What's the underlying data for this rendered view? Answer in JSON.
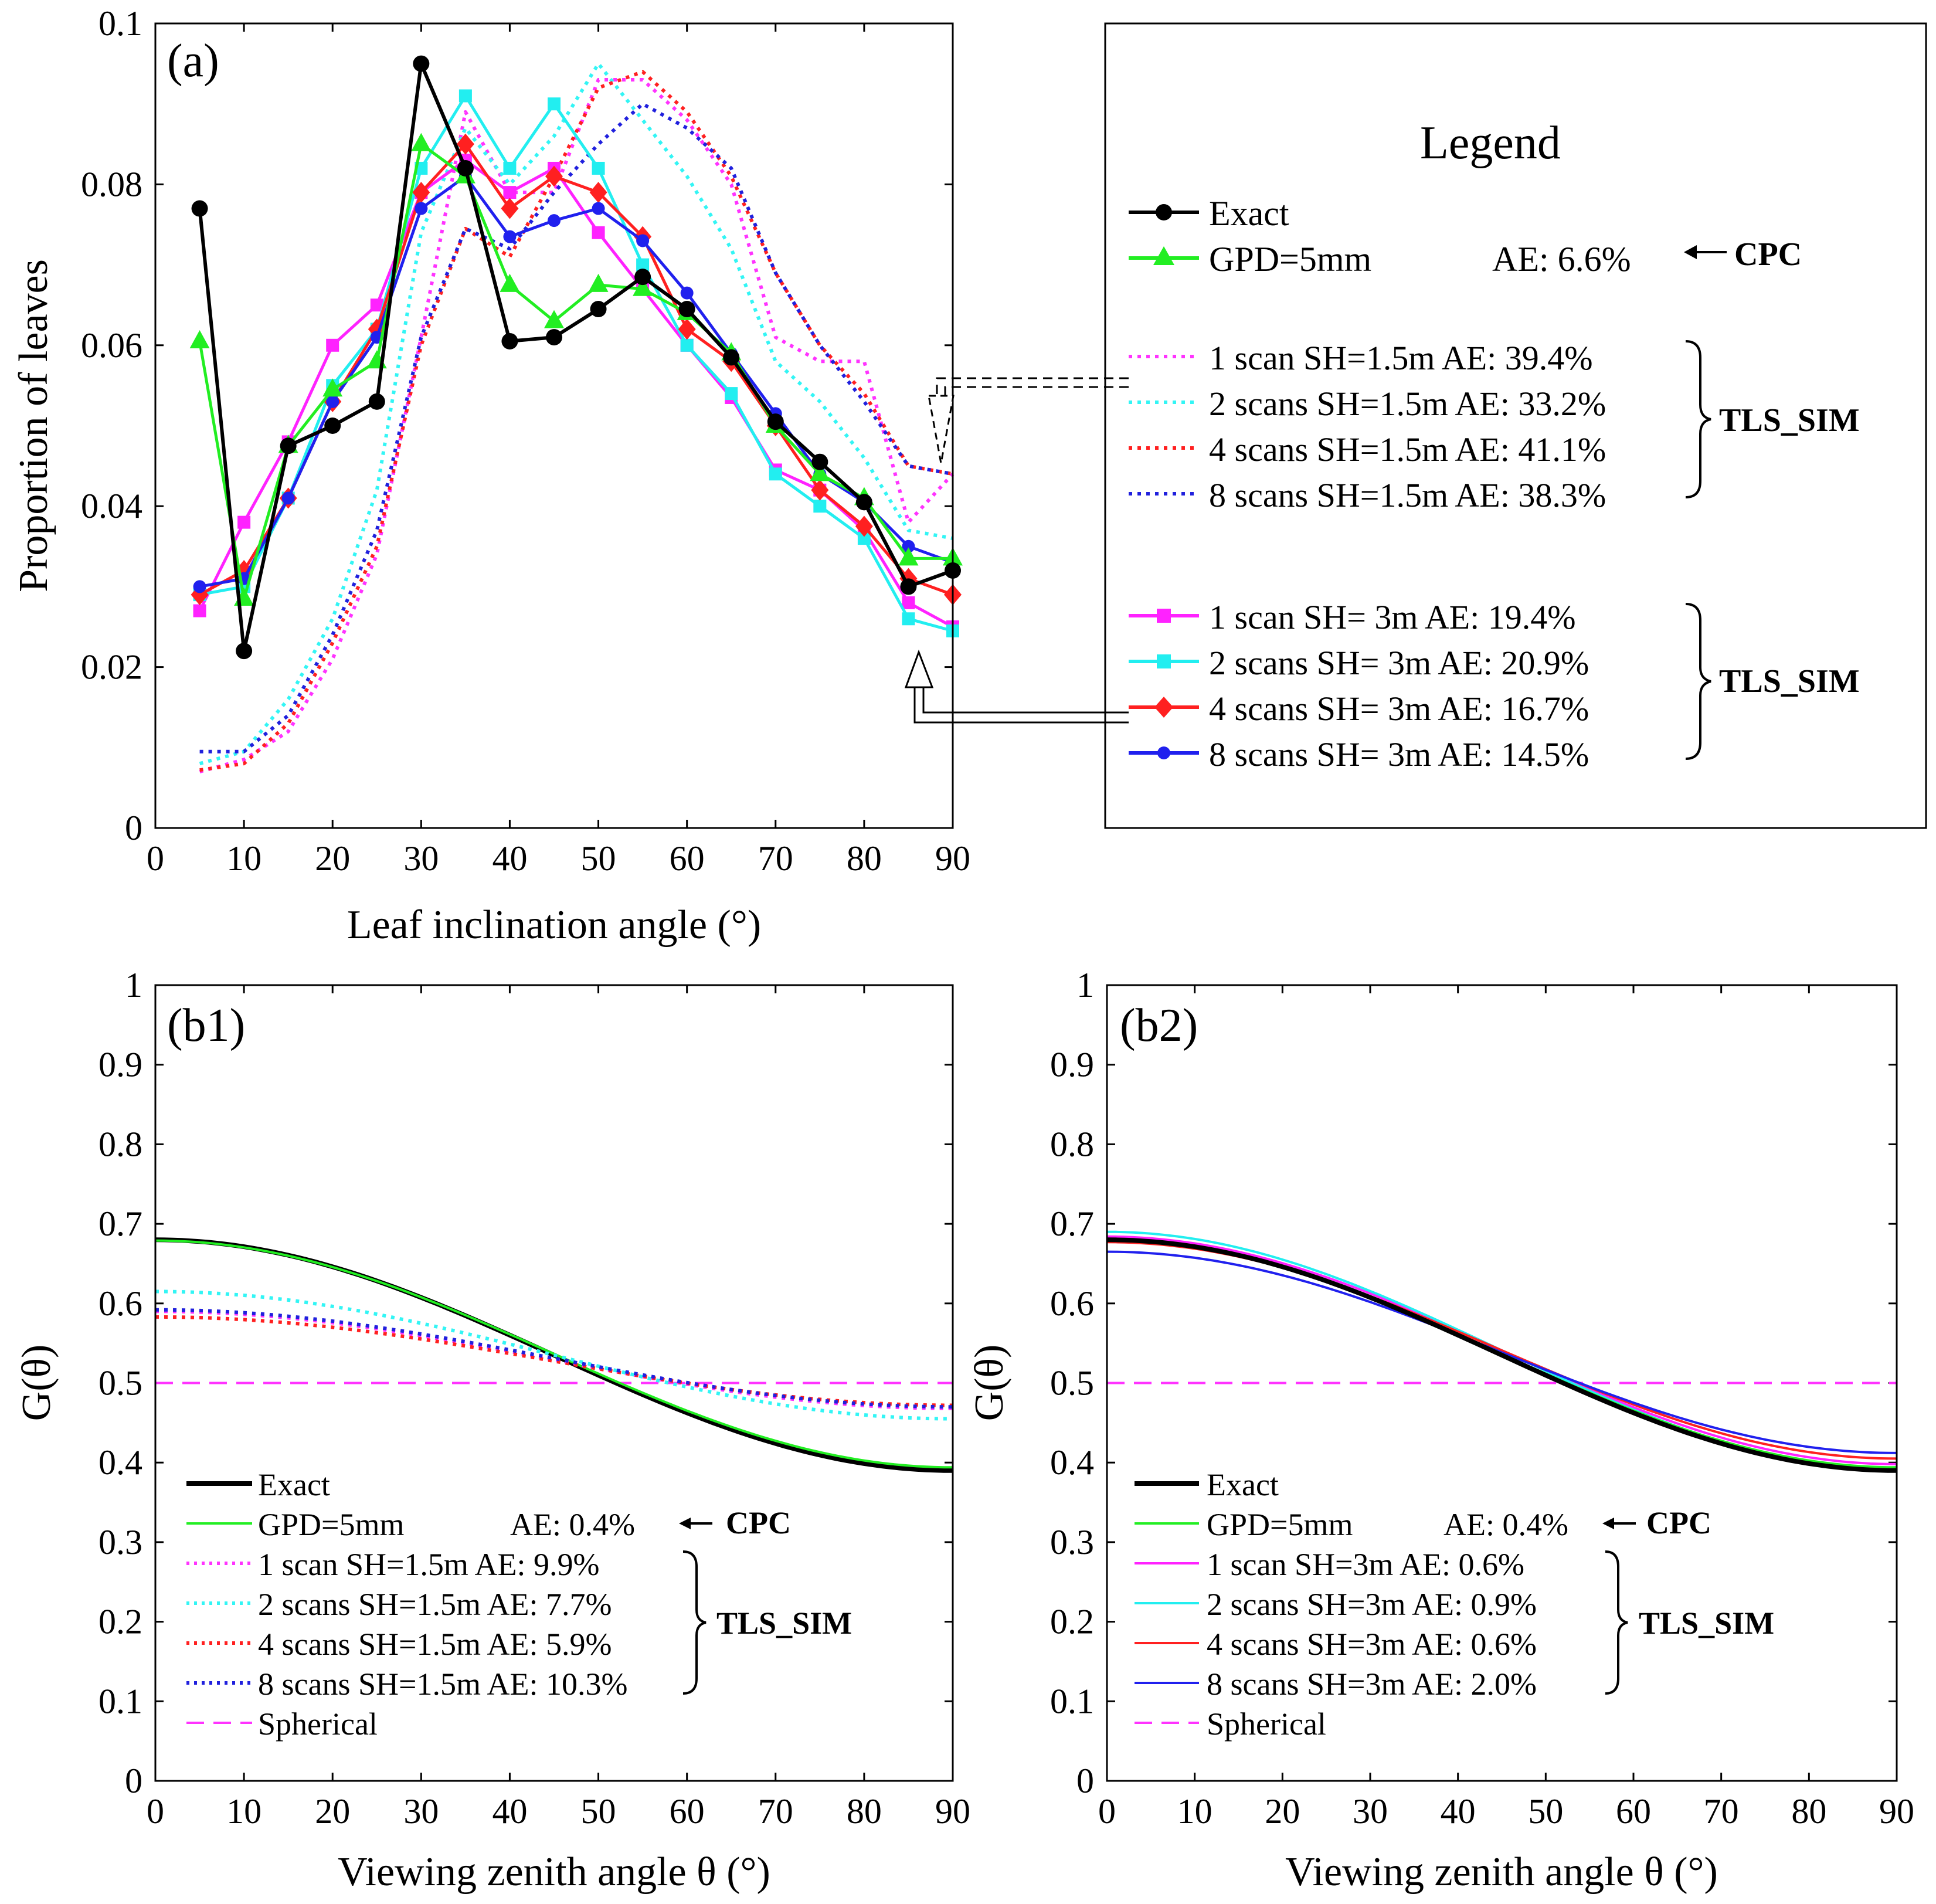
{
  "chart_data": [
    {
      "panel": "(a)",
      "type": "line",
      "xlabel": "Leaf inclination angle (°)",
      "ylabel": "Proportion of leaves",
      "xlim": [
        0,
        90
      ],
      "ylim": [
        0,
        0.1
      ],
      "xticks": [
        "0",
        "10",
        "20",
        "30",
        "40",
        "50",
        "60",
        "70",
        "80",
        "90"
      ],
      "yticks": [
        "0",
        "0.02",
        "0.04",
        "0.06",
        "0.08",
        "0.1"
      ],
      "x": [
        5,
        10,
        15,
        20,
        25,
        30,
        35,
        40,
        45,
        50,
        55,
        60,
        65,
        70,
        75,
        80,
        85,
        90
      ],
      "series": [
        {
          "name": "1 scan SH=1.5m",
          "color": "#ff33ff",
          "style": "dotted",
          "values": [
            0.007,
            0.0085,
            0.012,
            0.021,
            0.034,
            0.061,
            0.089,
            0.079,
            0.079,
            0.093,
            0.093,
            0.088,
            0.08,
            0.061,
            0.058,
            0.058,
            0.038,
            0.044
          ]
        },
        {
          "name": "2 scans SH=1.5m",
          "color": "#33f5f5",
          "style": "dotted",
          "values": [
            0.008,
            0.0095,
            0.016,
            0.026,
            0.042,
            0.074,
            0.087,
            0.08,
            0.086,
            0.095,
            0.088,
            0.081,
            0.072,
            0.058,
            0.053,
            0.046,
            0.037,
            0.036
          ]
        },
        {
          "name": "4 scans SH=1.5m",
          "color": "#ff2020",
          "style": "dotted",
          "values": [
            0.0072,
            0.008,
            0.013,
            0.023,
            0.035,
            0.06,
            0.0745,
            0.071,
            0.081,
            0.092,
            0.094,
            0.089,
            0.081,
            0.069,
            0.06,
            0.054,
            0.045,
            0.044
          ]
        },
        {
          "name": "8 scans SH=1.5m",
          "color": "#2020dd",
          "style": "dotted",
          "values": [
            0.0095,
            0.0095,
            0.014,
            0.024,
            0.037,
            0.061,
            0.0745,
            0.072,
            0.079,
            0.085,
            0.09,
            0.087,
            0.082,
            0.069,
            0.06,
            0.053,
            0.045,
            0.044
          ]
        },
        {
          "name": "1 scan SH= 3m",
          "color": "#ff22ff",
          "style": "solid",
          "marker": "square",
          "values": [
            0.027,
            0.038,
            0.048,
            0.06,
            0.065,
            0.079,
            0.083,
            0.079,
            0.082,
            0.074,
            0.067,
            0.06,
            0.0535,
            0.0445,
            0.042,
            0.037,
            0.028,
            0.025
          ]
        },
        {
          "name": "2 scans SH= 3m",
          "color": "#22eef0",
          "style": "solid",
          "marker": "square",
          "values": [
            0.029,
            0.03,
            0.041,
            0.055,
            0.062,
            0.082,
            0.091,
            0.082,
            0.09,
            0.082,
            0.07,
            0.06,
            0.054,
            0.044,
            0.04,
            0.036,
            0.026,
            0.0245
          ]
        },
        {
          "name": "4 scans SH= 3m",
          "color": "#ff2020",
          "style": "solid",
          "marker": "diamond",
          "values": [
            0.029,
            0.032,
            0.041,
            0.053,
            0.062,
            0.079,
            0.085,
            0.077,
            0.081,
            0.079,
            0.0735,
            0.062,
            0.058,
            0.05,
            0.042,
            0.0375,
            0.031,
            0.029
          ]
        },
        {
          "name": "8 scans SH= 3m",
          "color": "#2020ee",
          "style": "solid",
          "marker": "circle",
          "values": [
            0.03,
            0.031,
            0.041,
            0.053,
            0.061,
            0.077,
            0.081,
            0.0735,
            0.0755,
            0.077,
            0.073,
            0.0665,
            0.059,
            0.0515,
            0.044,
            0.0405,
            0.035,
            0.033
          ]
        },
        {
          "name": "GPD=5mm",
          "color": "#22ee22",
          "style": "solid",
          "marker": "triangle",
          "values": [
            0.0605,
            0.0285,
            0.0475,
            0.0545,
            0.058,
            0.085,
            0.081,
            0.0675,
            0.063,
            0.0675,
            0.067,
            0.064,
            0.059,
            0.05,
            0.044,
            0.041,
            0.0335,
            0.0335
          ]
        },
        {
          "name": "Exact",
          "color": "#000000",
          "style": "solid",
          "marker": "circle",
          "values": [
            0.077,
            0.022,
            0.0475,
            0.05,
            0.053,
            0.095,
            0.082,
            0.0605,
            0.061,
            0.0645,
            0.0685,
            0.0645,
            0.0585,
            0.0505,
            0.0455,
            0.0405,
            0.03,
            0.032
          ]
        }
      ]
    },
    {
      "panel": "(b1)",
      "type": "line",
      "xlabel": "Viewing zenith angle θ (°)",
      "ylabel": "G(θ)",
      "xlim": [
        0,
        90
      ],
      "ylim": [
        0,
        1
      ],
      "xticks": [
        "0",
        "10",
        "20",
        "30",
        "40",
        "50",
        "60",
        "70",
        "80",
        "90"
      ],
      "yticks": [
        "0",
        "0.1",
        "0.2",
        "0.3",
        "0.4",
        "0.5",
        "0.6",
        "0.7",
        "0.8",
        "0.9",
        "1"
      ],
      "spherical": 0.5,
      "series": [
        {
          "name": "Exact",
          "color": "#000000",
          "style": "solid",
          "start": 0.68,
          "end": 0.39
        },
        {
          "name": "GPD=5mm",
          "color": "#22ee22",
          "style": "solid",
          "start": 0.679,
          "end": 0.394
        },
        {
          "name": "1 scan SH=1.5m",
          "color": "#ff33ff",
          "style": "dotted",
          "start": 0.59,
          "end": 0.468
        },
        {
          "name": "2 scans SH=1.5m",
          "color": "#33f5f5",
          "style": "dotted",
          "start": 0.615,
          "end": 0.455
        },
        {
          "name": "4 scans SH=1.5m",
          "color": "#ff2020",
          "style": "dotted",
          "start": 0.583,
          "end": 0.472
        },
        {
          "name": "8 scans SH=1.5m",
          "color": "#2020dd",
          "style": "dotted",
          "start": 0.592,
          "end": 0.47
        }
      ]
    },
    {
      "panel": "(b2)",
      "type": "line",
      "xlabel": "Viewing zenith angle θ (°)",
      "ylabel": "G(θ)",
      "xlim": [
        0,
        90
      ],
      "ylim": [
        0,
        1
      ],
      "xticks": [
        "0",
        "10",
        "20",
        "30",
        "40",
        "50",
        "60",
        "70",
        "80",
        "90"
      ],
      "yticks": [
        "0",
        "0.1",
        "0.2",
        "0.3",
        "0.4",
        "0.5",
        "0.6",
        "0.7",
        "0.8",
        "0.9",
        "1"
      ],
      "spherical": 0.5,
      "series": [
        {
          "name": "1 scan SH=3m",
          "color": "#ff22ff",
          "style": "solid",
          "start": 0.684,
          "end": 0.398
        },
        {
          "name": "2 scans SH=3m",
          "color": "#22eef0",
          "style": "solid",
          "start": 0.69,
          "end": 0.392
        },
        {
          "name": "4 scans SH=3m",
          "color": "#ff2020",
          "style": "solid",
          "start": 0.677,
          "end": 0.405
        },
        {
          "name": "8 scans SH=3m",
          "color": "#2020ee",
          "style": "solid",
          "start": 0.665,
          "end": 0.412
        },
        {
          "name": "GPD=5mm",
          "color": "#22ee22",
          "style": "solid",
          "start": 0.679,
          "end": 0.394
        },
        {
          "name": "Exact",
          "color": "#000000",
          "style": "solid",
          "start": 0.68,
          "end": 0.39
        }
      ]
    }
  ],
  "legend_a": {
    "title": "Legend",
    "exact": "Exact",
    "gpd": "GPD=5mm",
    "gpd_ae": "AE: 6.6%",
    "cpc": "CPC",
    "tls": "TLS_SIM",
    "group1": [
      {
        "label": "1 scan   SH=1.5m AE: 39.4%"
      },
      {
        "label": "2 scans SH=1.5m AE: 33.2%"
      },
      {
        "label": "4 scans SH=1.5m AE: 41.1%"
      },
      {
        "label": "8 scans SH=1.5m AE: 38.3%"
      }
    ],
    "group2": [
      {
        "label": "1 scan   SH= 3m   AE: 19.4%"
      },
      {
        "label": "2 scans SH= 3m   AE: 20.9%"
      },
      {
        "label": "4 scans SH= 3m   AE: 16.7%"
      },
      {
        "label": "8 scans SH= 3m   AE: 14.5%"
      }
    ]
  },
  "legend_b1": {
    "exact": "Exact",
    "gpd": "GPD=5mm",
    "gpd_ae": "AE: 0.4%",
    "cpc": "CPC",
    "tls": "TLS_SIM",
    "rows": [
      {
        "label": "1 scan   SH=1.5m AE: 9.9%"
      },
      {
        "label": "2 scans SH=1.5m AE: 7.7%"
      },
      {
        "label": "4 scans SH=1.5m AE: 5.9%"
      },
      {
        "label": "8 scans SH=1.5m AE: 10.3%"
      }
    ],
    "spherical": "Spherical"
  },
  "legend_b2": {
    "exact": "Exact",
    "gpd": "GPD=5mm",
    "gpd_ae": "AE: 0.4%",
    "cpc": "CPC",
    "tls": "TLS_SIM",
    "rows": [
      {
        "label": "1 scan   SH=3m AE: 0.6%"
      },
      {
        "label": "2 scans SH=3m AE: 0.9%"
      },
      {
        "label": "4 scans SH=3m AE: 0.6%"
      },
      {
        "label": "8 scans SH=3m AE: 2.0%"
      }
    ],
    "spherical": "Spherical"
  }
}
